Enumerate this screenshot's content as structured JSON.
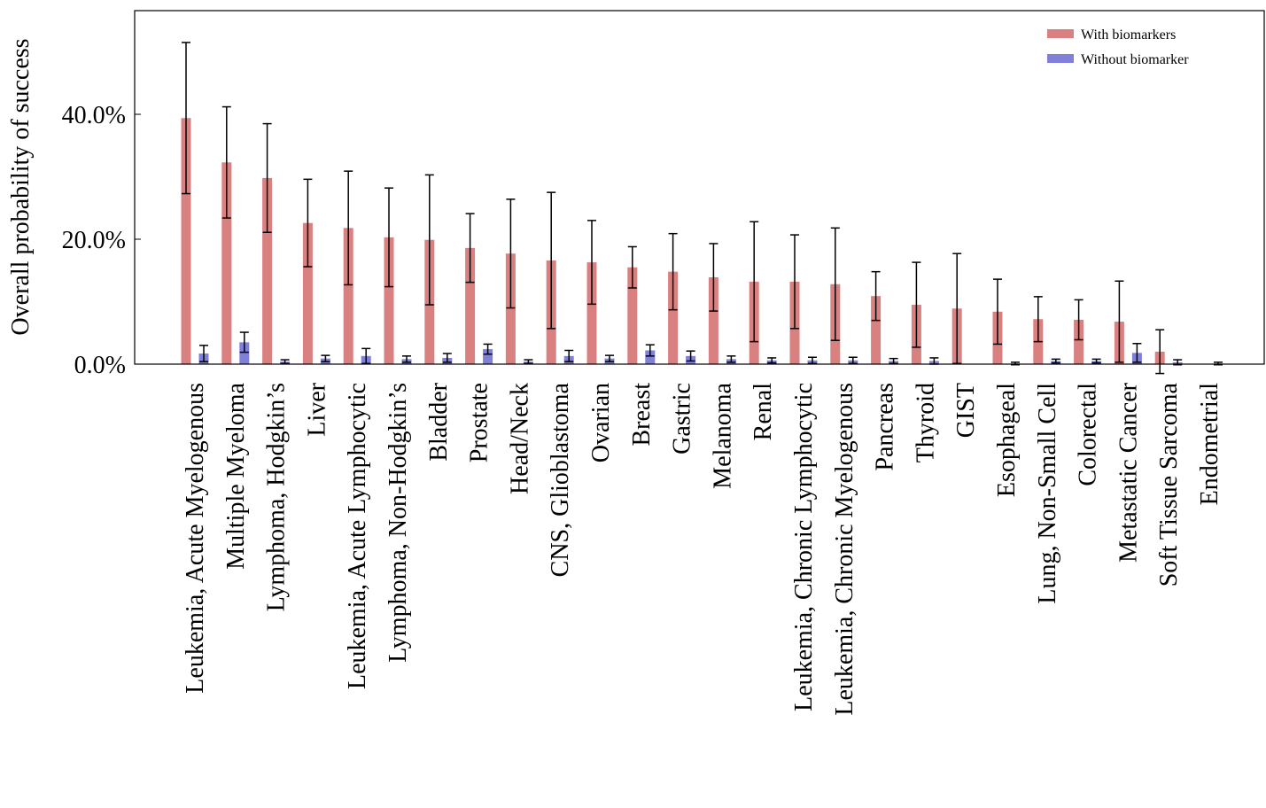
{
  "chart_data": {
    "type": "bar",
    "y_label": "Overall probability of success",
    "categories": [
      "Leukemia, Acute Myelogenous",
      "Multiple Myeloma",
      "Lymphoma, Hodgkin’s",
      "Liver",
      "Leukemia, Acute Lymphocytic",
      "Lymphoma, Non-Hodgkin’s",
      "Bladder",
      "Prostate",
      "Head/Neck",
      "CNS, Glioblastoma",
      "Ovarian",
      "Breast",
      "Gastric",
      "Melanoma",
      "Renal",
      "Leukemia, Chronic Lymphocytic",
      "Leukemia, Chronic Myelogenous",
      "Pancreas",
      "Thyroid",
      "GIST",
      "Esophageal",
      "Lung, Non-Small Cell",
      "Colorectal",
      "Metastatic Cancer",
      "Soft Tissue Sarcoma",
      "Endometrial"
    ],
    "series": [
      {
        "name": "With biomarkers",
        "color": "#d98080",
        "values": [
          39.4,
          32.3,
          29.8,
          22.6,
          21.8,
          20.3,
          19.9,
          18.6,
          17.7,
          16.6,
          16.3,
          15.5,
          14.8,
          13.9,
          13.2,
          13.2,
          12.8,
          10.9,
          9.5,
          8.9,
          8.4,
          7.2,
          7.1,
          6.8,
          2.0,
          null
        ],
        "errors": [
          12.1,
          8.9,
          8.7,
          7.0,
          9.1,
          7.9,
          10.4,
          5.5,
          8.7,
          10.9,
          6.7,
          3.3,
          6.1,
          5.4,
          9.6,
          7.5,
          9.0,
          3.9,
          6.8,
          8.8,
          5.2,
          3.6,
          3.2,
          6.5,
          3.5,
          null
        ]
      },
      {
        "name": "Without biomarker",
        "color": "#8080d9",
        "values": [
          1.7,
          3.5,
          0.4,
          0.9,
          1.3,
          0.8,
          1.0,
          2.4,
          0.4,
          1.3,
          0.9,
          2.2,
          1.3,
          0.8,
          0.6,
          0.6,
          0.6,
          0.5,
          0.5,
          null,
          0.1,
          0.5,
          0.5,
          1.8,
          0.3,
          0.1
        ],
        "errors": [
          1.3,
          1.6,
          0.3,
          0.5,
          1.2,
          0.5,
          0.7,
          0.8,
          0.3,
          0.9,
          0.5,
          0.9,
          0.8,
          0.5,
          0.4,
          0.5,
          0.5,
          0.4,
          0.5,
          null,
          0.2,
          0.3,
          0.3,
          1.5,
          0.4,
          0.2
        ]
      }
    ],
    "ylim": [
      0,
      56.6
    ],
    "yticks": [
      {
        "value": 0,
        "label": "0.0%"
      },
      {
        "value": 20,
        "label": "20.0%"
      },
      {
        "value": 40,
        "label": "40.0%"
      }
    ],
    "legend": "upper right"
  }
}
